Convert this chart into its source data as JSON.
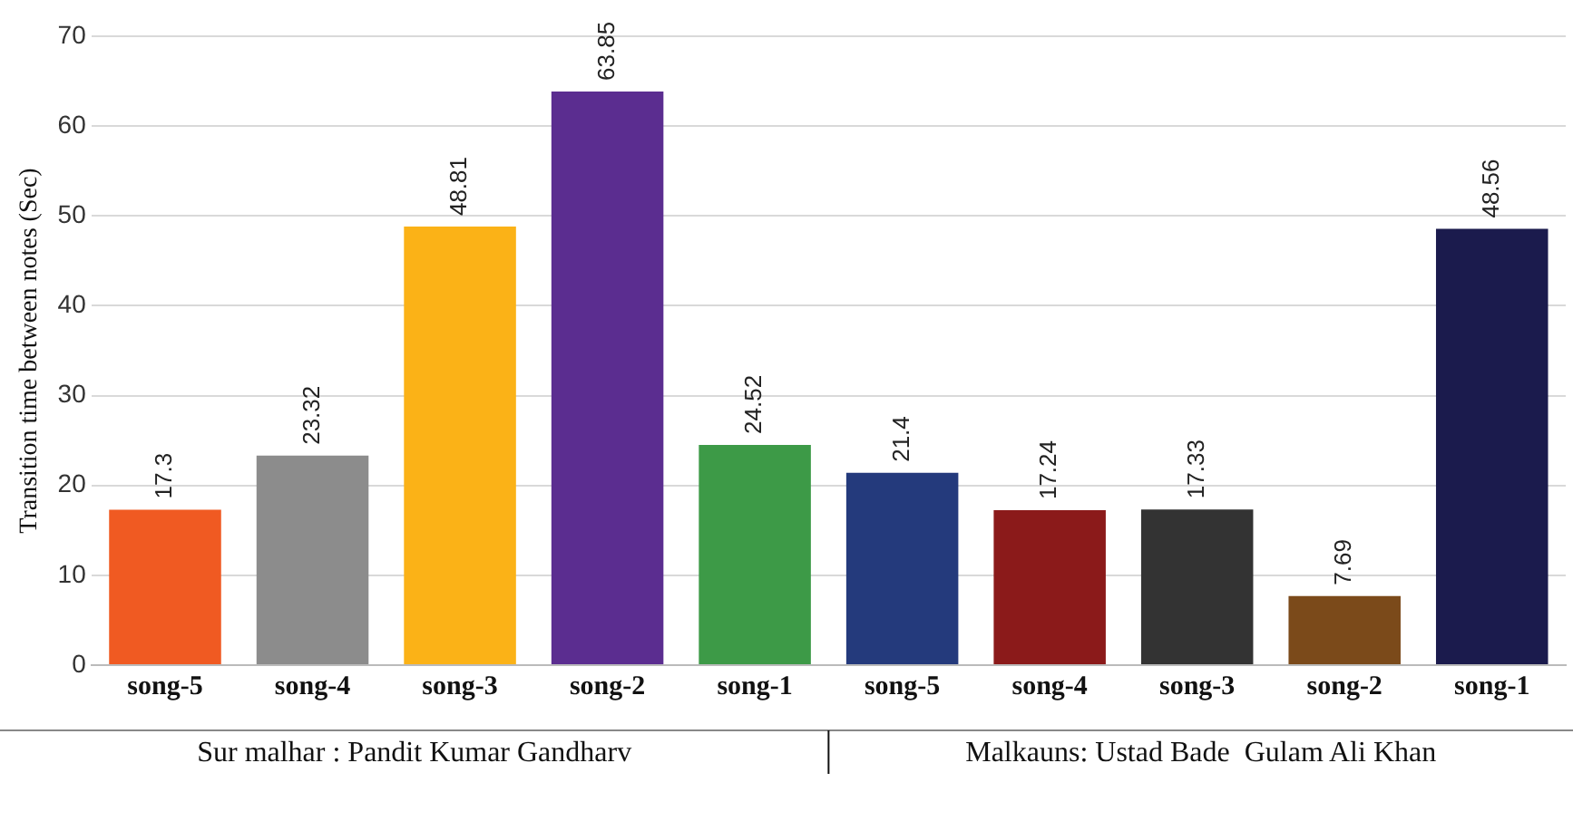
{
  "chart_data": {
    "type": "bar",
    "ylabel": "Transition time between notes (Sec)",
    "categories": [
      "song-5",
      "song-4",
      "song-3",
      "song-2",
      "song-1",
      "song-5",
      "song-4",
      "song-3",
      "song-2",
      "song-1"
    ],
    "values": [
      17.3,
      23.32,
      48.81,
      63.85,
      24.52,
      21.4,
      17.24,
      17.33,
      7.69,
      48.56
    ],
    "colors": [
      "#f05a22",
      "#8c8c8c",
      "#fbb217",
      "#5b2d90",
      "#3d9a47",
      "#243a7c",
      "#8b1a1a",
      "#333333",
      "#7b4a1a",
      "#1b1b4d"
    ],
    "ylim": [
      0,
      70
    ],
    "yticks": [
      0,
      10,
      20,
      30,
      40,
      50,
      60,
      70
    ],
    "grid": "y",
    "legend": false,
    "data_labels": true,
    "annotations": [
      "Sur malhar : Pandit Kumar Gandharv",
      "Malkauns: Ustad Bade  Gulam Ali Khan"
    ]
  }
}
